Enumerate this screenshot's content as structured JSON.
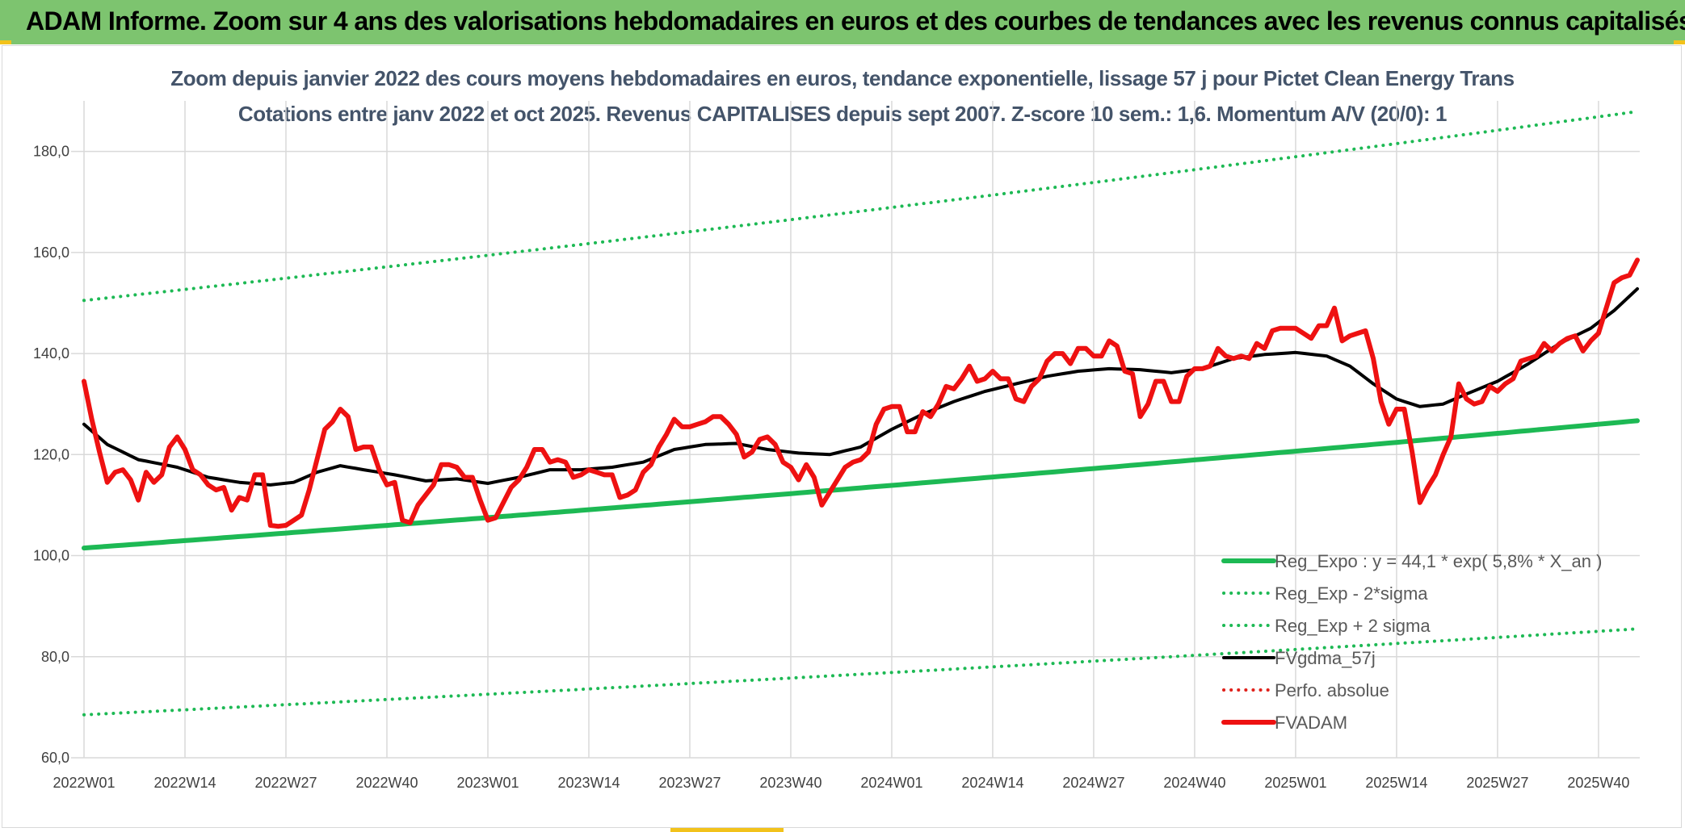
{
  "banner": {
    "title": "ADAM Informe. Zoom sur 4 ans des valorisations hebdomadaires en euros et des courbes de tendances avec les revenus connus capitalisés"
  },
  "chart_data": {
    "type": "line",
    "title": "Zoom depuis janvier 2022 des cours moyens hebdomadaires en euros, tendance exponentielle, lissage 57 j pour Pictet Clean Energy Trans",
    "subtitle": "Cotations entre janv 2022 et oct 2025. Revenus CAPITALISES depuis sept 2007. Z-score 10 sem.: 1,6. Momentum A/V (20/0): 1",
    "xlabel": "",
    "ylabel": "",
    "ylim": [
      60,
      190
    ],
    "y_ticks": [
      "60,0",
      "80,0",
      "100,0",
      "120,0",
      "140,0",
      "160,0",
      "180,0"
    ],
    "y_tick_values": [
      60,
      80,
      100,
      120,
      140,
      160,
      180
    ],
    "x_ticks": [
      "2022W01",
      "2022W14",
      "2022W27",
      "2022W40",
      "2023W01",
      "2023W14",
      "2023W27",
      "2023W40",
      "2024W01",
      "2024W14",
      "2024W27",
      "2024W40",
      "2025W01",
      "2025W14",
      "2025W27",
      "2025W40"
    ],
    "x_tick_index": [
      0,
      13,
      26,
      39,
      52,
      65,
      78,
      91,
      104,
      117,
      130,
      143,
      156,
      169,
      182,
      195
    ],
    "n_weeks": 201,
    "grid": true,
    "legend_position": "bottom-right",
    "series": [
      {
        "name": "Reg_Expo : y = 44,1 * exp( 5,8% *  X_an )",
        "color": "#1db954",
        "style": "solid",
        "width": 6,
        "shape": "exp",
        "start": 101.5,
        "end": 126.7
      },
      {
        "name": "Reg_Exp - 2*sigma",
        "color": "#1db954",
        "style": "dotted",
        "width": 4,
        "shape": "exp",
        "start": 68.5,
        "end": 85.5
      },
      {
        "name": "Reg_Exp + 2 sigma",
        "color": "#1db954",
        "style": "dotted",
        "width": 4,
        "shape": "exp",
        "start": 150.5,
        "end": 187.9
      },
      {
        "name": "FVgdma_57j",
        "color": "#000000",
        "style": "solid",
        "width": 4,
        "shape": "knots",
        "knots": [
          [
            0,
            126
          ],
          [
            3,
            122
          ],
          [
            7,
            119
          ],
          [
            12,
            117.5
          ],
          [
            16,
            115.5
          ],
          [
            20,
            114.5
          ],
          [
            24,
            114
          ],
          [
            27,
            114.5
          ],
          [
            30,
            116.5
          ],
          [
            33,
            117.8
          ],
          [
            36,
            117
          ],
          [
            40,
            116
          ],
          [
            44,
            114.8
          ],
          [
            48,
            115.2
          ],
          [
            52,
            114.3
          ],
          [
            56,
            115.5
          ],
          [
            60,
            117
          ],
          [
            64,
            117
          ],
          [
            68,
            117.5
          ],
          [
            72,
            118.5
          ],
          [
            76,
            121
          ],
          [
            80,
            122
          ],
          [
            84,
            122.2
          ],
          [
            88,
            121
          ],
          [
            92,
            120.3
          ],
          [
            96,
            120
          ],
          [
            100,
            121.5
          ],
          [
            104,
            125
          ],
          [
            108,
            128
          ],
          [
            112,
            130.5
          ],
          [
            116,
            132.5
          ],
          [
            120,
            134
          ],
          [
            124,
            135.5
          ],
          [
            128,
            136.5
          ],
          [
            132,
            137
          ],
          [
            136,
            136.8
          ],
          [
            140,
            136.2
          ],
          [
            144,
            137
          ],
          [
            148,
            139
          ],
          [
            152,
            139.8
          ],
          [
            156,
            140.2
          ],
          [
            160,
            139.5
          ],
          [
            163,
            137.5
          ],
          [
            166,
            134
          ],
          [
            169,
            131
          ],
          [
            172,
            129.5
          ],
          [
            175,
            130
          ],
          [
            178,
            132
          ],
          [
            182,
            134.5
          ],
          [
            186,
            138
          ],
          [
            190,
            142
          ],
          [
            194,
            145
          ],
          [
            197,
            148.5
          ],
          [
            200,
            152.8
          ]
        ]
      },
      {
        "name": "Perfo. absolue",
        "color": "#e0211b",
        "style": "dotted",
        "width": 4,
        "shape": "none"
      },
      {
        "name": "FVADAM",
        "color": "#ee1111",
        "style": "solid",
        "width": 6,
        "shape": "knots",
        "knots": [
          [
            0,
            134.5
          ],
          [
            1,
            127
          ],
          [
            2,
            120.5
          ],
          [
            3,
            114.5
          ],
          [
            4,
            116.5
          ],
          [
            5,
            117
          ],
          [
            6,
            115
          ],
          [
            7,
            111
          ],
          [
            8,
            116.5
          ],
          [
            9,
            114.5
          ],
          [
            10,
            116
          ],
          [
            11,
            121.5
          ],
          [
            12,
            123.5
          ],
          [
            13,
            121
          ],
          [
            14,
            117
          ],
          [
            15,
            116
          ],
          [
            16,
            114
          ],
          [
            17,
            113
          ],
          [
            18,
            113.5
          ],
          [
            19,
            109
          ],
          [
            20,
            111.5
          ],
          [
            21,
            111
          ],
          [
            22,
            116
          ],
          [
            23,
            116
          ],
          [
            24,
            106
          ],
          [
            25,
            105.8
          ],
          [
            26,
            106
          ],
          [
            27,
            107
          ],
          [
            28,
            108
          ],
          [
            29,
            113
          ],
          [
            30,
            119
          ],
          [
            31,
            125
          ],
          [
            32,
            126.5
          ],
          [
            33,
            129
          ],
          [
            34,
            127.5
          ],
          [
            35,
            121
          ],
          [
            36,
            121.5
          ],
          [
            37,
            121.5
          ],
          [
            38,
            117
          ],
          [
            39,
            114
          ],
          [
            40,
            114.5
          ],
          [
            41,
            107
          ],
          [
            42,
            106.5
          ],
          [
            43,
            110
          ],
          [
            44,
            112
          ],
          [
            45,
            114
          ],
          [
            46,
            118
          ],
          [
            47,
            118
          ],
          [
            48,
            117.5
          ],
          [
            49,
            115.5
          ],
          [
            50,
            115.5
          ],
          [
            51,
            111
          ],
          [
            52,
            107
          ],
          [
            53,
            107.5
          ],
          [
            54,
            110.5
          ],
          [
            55,
            113.5
          ],
          [
            56,
            115
          ],
          [
            57,
            117.5
          ],
          [
            58,
            121
          ],
          [
            59,
            121
          ],
          [
            60,
            118.5
          ],
          [
            61,
            119
          ],
          [
            62,
            118.5
          ],
          [
            63,
            115.5
          ],
          [
            64,
            116
          ],
          [
            65,
            117
          ],
          [
            66,
            116.5
          ],
          [
            67,
            116
          ],
          [
            68,
            116
          ],
          [
            69,
            111.5
          ],
          [
            70,
            112
          ],
          [
            71,
            113
          ],
          [
            72,
            116.5
          ],
          [
            73,
            118
          ],
          [
            74,
            121.5
          ],
          [
            75,
            124
          ],
          [
            76,
            127
          ],
          [
            77,
            125.5
          ],
          [
            78,
            125.5
          ],
          [
            79,
            126
          ],
          [
            80,
            126.5
          ],
          [
            81,
            127.5
          ],
          [
            82,
            127.5
          ],
          [
            83,
            126
          ],
          [
            84,
            124
          ],
          [
            85,
            119.5
          ],
          [
            86,
            120.5
          ],
          [
            87,
            123
          ],
          [
            88,
            123.5
          ],
          [
            89,
            122
          ],
          [
            90,
            118.5
          ],
          [
            91,
            117.5
          ],
          [
            92,
            115
          ],
          [
            93,
            118
          ],
          [
            94,
            115.5
          ],
          [
            95,
            110
          ],
          [
            96,
            112.5
          ],
          [
            97,
            115
          ],
          [
            98,
            117.5
          ],
          [
            99,
            118.5
          ],
          [
            100,
            119
          ],
          [
            101,
            120.5
          ],
          [
            102,
            126
          ],
          [
            103,
            129
          ],
          [
            104,
            129.5
          ],
          [
            105,
            129.5
          ],
          [
            106,
            124.5
          ],
          [
            107,
            124.5
          ],
          [
            108,
            128.5
          ],
          [
            109,
            127.5
          ],
          [
            110,
            130
          ],
          [
            111,
            133.5
          ],
          [
            112,
            133
          ],
          [
            113,
            135
          ],
          [
            114,
            137.5
          ],
          [
            115,
            134.5
          ],
          [
            116,
            135
          ],
          [
            117,
            136.5
          ],
          [
            118,
            135
          ],
          [
            119,
            135
          ],
          [
            120,
            131
          ],
          [
            121,
            130.5
          ],
          [
            122,
            133.5
          ],
          [
            123,
            135
          ],
          [
            124,
            138.5
          ],
          [
            125,
            140
          ],
          [
            126,
            140
          ],
          [
            127,
            138
          ],
          [
            128,
            141
          ],
          [
            129,
            141
          ],
          [
            130,
            139.5
          ],
          [
            131,
            139.5
          ],
          [
            132,
            142.5
          ],
          [
            133,
            141.5
          ],
          [
            134,
            136.5
          ],
          [
            135,
            136
          ],
          [
            136,
            127.5
          ],
          [
            137,
            130
          ],
          [
            138,
            134.5
          ],
          [
            139,
            134.5
          ],
          [
            140,
            130.5
          ],
          [
            141,
            130.5
          ],
          [
            142,
            135.5
          ],
          [
            143,
            137
          ],
          [
            144,
            137
          ],
          [
            145,
            137.5
          ],
          [
            146,
            141
          ],
          [
            147,
            139.5
          ],
          [
            148,
            139
          ],
          [
            149,
            139.5
          ],
          [
            150,
            139
          ],
          [
            151,
            142
          ],
          [
            152,
            141
          ],
          [
            153,
            144.5
          ],
          [
            154,
            145
          ],
          [
            155,
            145
          ],
          [
            156,
            145
          ],
          [
            157,
            144
          ],
          [
            158,
            143
          ],
          [
            159,
            145.5
          ],
          [
            160,
            145.5
          ],
          [
            161,
            149
          ],
          [
            162,
            142.5
          ],
          [
            163,
            143.5
          ],
          [
            164,
            144
          ],
          [
            165,
            144.5
          ],
          [
            166,
            139
          ],
          [
            167,
            130.5
          ],
          [
            168,
            126
          ],
          [
            169,
            129
          ],
          [
            170,
            129
          ],
          [
            171,
            120.5
          ],
          [
            172,
            110.5
          ],
          [
            173,
            113.5
          ],
          [
            174,
            116
          ],
          [
            175,
            120
          ],
          [
            176,
            123.5
          ],
          [
            177,
            134
          ],
          [
            178,
            131
          ],
          [
            179,
            130
          ],
          [
            180,
            130.5
          ],
          [
            181,
            133.5
          ],
          [
            182,
            132.5
          ],
          [
            183,
            134
          ],
          [
            184,
            135
          ],
          [
            185,
            138.5
          ],
          [
            186,
            139
          ],
          [
            187,
            139.5
          ],
          [
            188,
            142
          ],
          [
            189,
            140.5
          ],
          [
            190,
            142
          ],
          [
            191,
            143
          ],
          [
            192,
            143.5
          ],
          [
            193,
            140.5
          ],
          [
            194,
            142.5
          ],
          [
            195,
            144
          ],
          [
            196,
            149
          ],
          [
            197,
            154
          ],
          [
            198,
            155
          ],
          [
            199,
            155.5
          ],
          [
            200,
            158.5
          ]
        ]
      }
    ]
  },
  "colors": {
    "banner": "#7dc46f",
    "accent": "#f2c21b",
    "subtitle": "#44546a",
    "grid": "#d9d9d9"
  }
}
